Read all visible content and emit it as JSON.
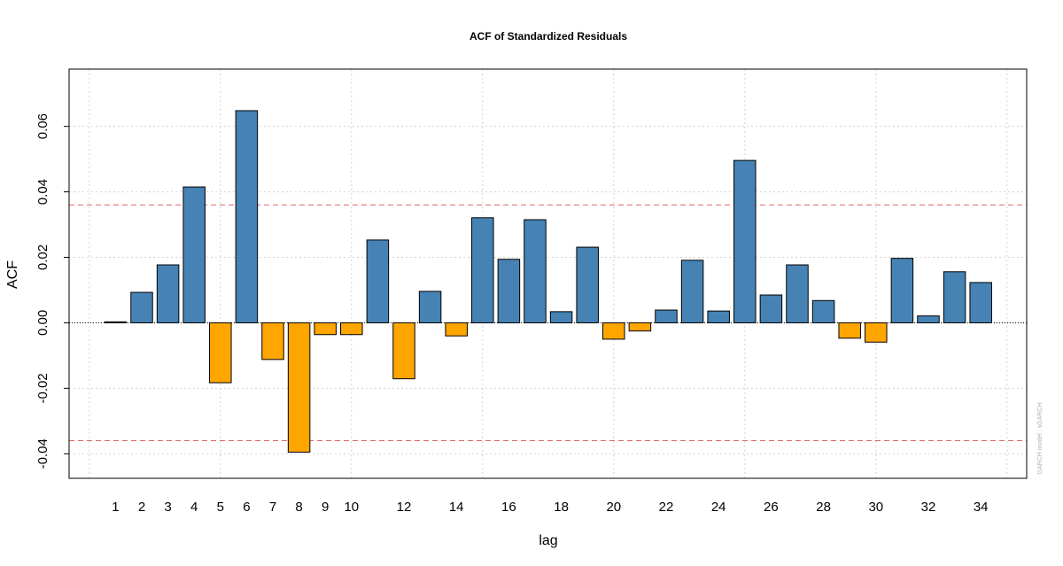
{
  "chart_data": {
    "type": "bar",
    "title": "ACF of Standardized Residuals",
    "xlabel": "lag",
    "ylabel": "ACF",
    "watermark": "GARCH model : sGARCH",
    "x": [
      1,
      2,
      3,
      4,
      5,
      6,
      7,
      8,
      9,
      10,
      11,
      12,
      13,
      14,
      15,
      16,
      17,
      18,
      19,
      20,
      21,
      22,
      23,
      24,
      25,
      26,
      27,
      28,
      29,
      30,
      31,
      32,
      33,
      34
    ],
    "values": [
      0.0003,
      0.0093,
      0.0177,
      0.0415,
      -0.0183,
      0.0648,
      -0.0112,
      -0.0395,
      -0.0036,
      -0.0036,
      0.0253,
      -0.0171,
      0.0096,
      -0.004,
      0.0321,
      0.0194,
      0.0315,
      0.0034,
      0.0231,
      -0.005,
      -0.0025,
      0.0039,
      0.0191,
      0.0036,
      0.0496,
      0.0085,
      0.0177,
      0.0068,
      -0.0047,
      -0.0059,
      0.0197,
      0.0021,
      0.0156,
      0.0123
    ],
    "x_ticks": [
      "1",
      "2",
      "3",
      "4",
      "5",
      "6",
      "7",
      "8",
      "9",
      "10",
      "12",
      "14",
      "16",
      "18",
      "20",
      "22",
      "24",
      "26",
      "28",
      "30",
      "32",
      "34"
    ],
    "y_ticks": [
      "-0.04",
      "-0.02",
      "0.00",
      "0.02",
      "0.04",
      "0.06"
    ],
    "ylim": [
      -0.0475,
      0.0775
    ],
    "confidence_bound": 0.036,
    "grid": true,
    "colors": {
      "positive": "#4682B4",
      "negative": "#FFA500",
      "bound_line": "#E06666",
      "grid": "#D3D3D3",
      "zero_line": "#000000"
    }
  }
}
